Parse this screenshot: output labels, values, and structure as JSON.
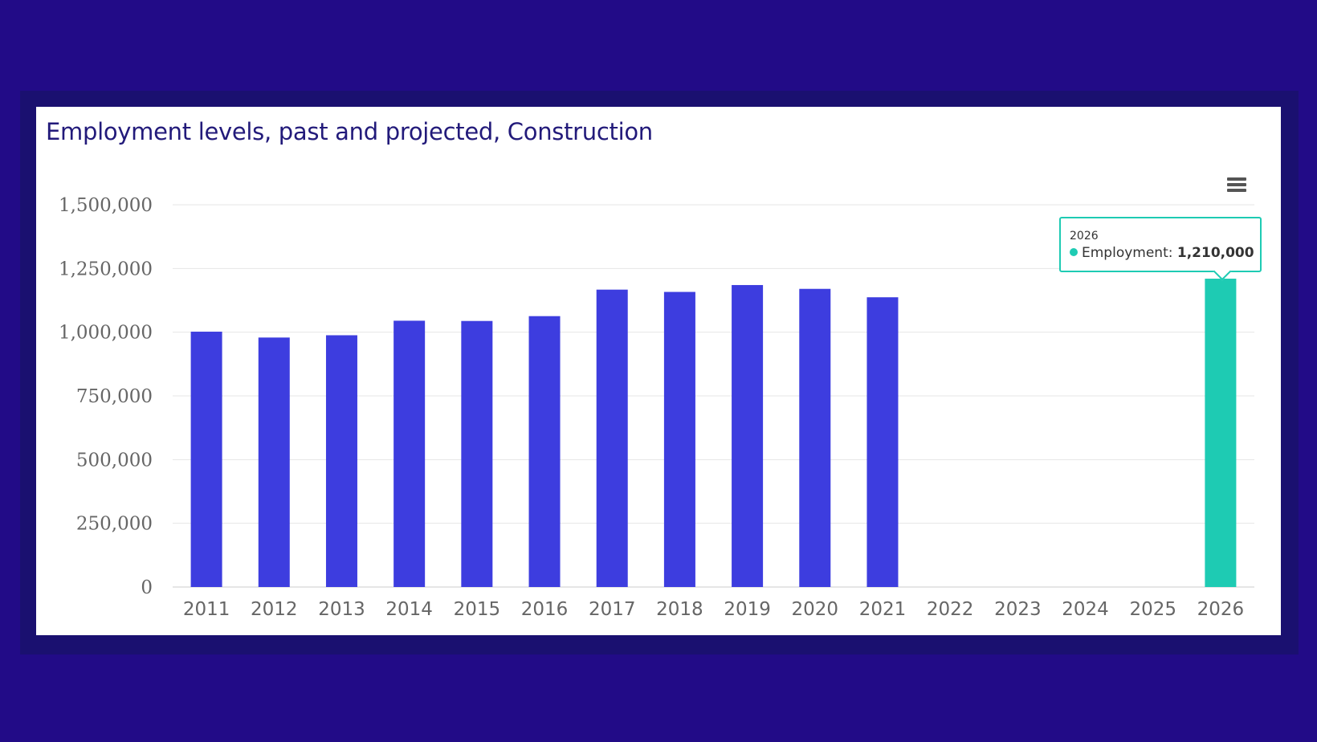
{
  "chart_data": {
    "type": "bar",
    "title": "Employment levels, past and projected, Construction",
    "categories": [
      "2011",
      "2012",
      "2013",
      "2014",
      "2015",
      "2016",
      "2017",
      "2018",
      "2019",
      "2020",
      "2021",
      "2022",
      "2023",
      "2024",
      "2025",
      "2026"
    ],
    "series": [
      {
        "name": "Employment",
        "values": [
          1002000,
          979000,
          988000,
          1045000,
          1044000,
          1063000,
          1167000,
          1158000,
          1185000,
          1170000,
          1137000,
          null,
          null,
          null,
          null,
          1210000
        ]
      }
    ],
    "yticks": [
      "0",
      "250,000",
      "500,000",
      "750,000",
      "1,000,000",
      "1,250,000",
      "1,500,000"
    ],
    "ylim": [
      0,
      1500000
    ],
    "grid": true,
    "legend": "none",
    "colors": {
      "bar": "#3d3ddf",
      "highlight": "#1ecbb3",
      "title": "#221a7a",
      "background": "#220b87"
    },
    "tooltip": {
      "header": "2026",
      "label": "Employment:",
      "value": "1,210,000"
    }
  },
  "menu_icon": "hamburger-menu-icon"
}
